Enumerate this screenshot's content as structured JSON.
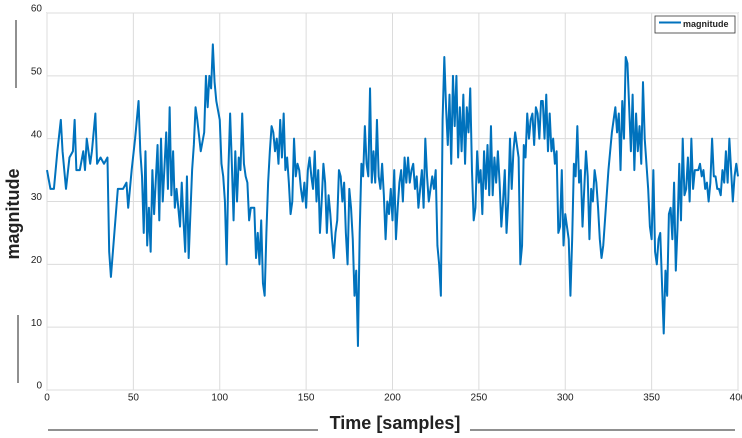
{
  "chart_data": {
    "type": "line",
    "xlabel": "Time [samples]",
    "ylabel": "magnitude",
    "xlim": [
      0,
      400
    ],
    "xticks": [
      0,
      50,
      100,
      150,
      200,
      250,
      300,
      350,
      400
    ],
    "ylim": [
      0,
      60
    ],
    "yticks": [
      0,
      10,
      20,
      30,
      40,
      50,
      60
    ],
    "grid": true,
    "legend": "upper right",
    "x": [
      0,
      2,
      4,
      6,
      8,
      9,
      11,
      13,
      15,
      16,
      17,
      19,
      21,
      22,
      23,
      25,
      26,
      28,
      29,
      31,
      33,
      35,
      36,
      37,
      39,
      41,
      44,
      46,
      47,
      49,
      51,
      53,
      54,
      55,
      56,
      57,
      58,
      59,
      60,
      61,
      62,
      64,
      65,
      66,
      67,
      69,
      70,
      71,
      72,
      73,
      74,
      75,
      77,
      78,
      79,
      80,
      81,
      82,
      84,
      85,
      86,
      87,
      89,
      91,
      92,
      93,
      94,
      95,
      96,
      97,
      98,
      100,
      101,
      102,
      103,
      104,
      105,
      106,
      107,
      108,
      109,
      110,
      111,
      112,
      113,
      114,
      115,
      116,
      117,
      118,
      119,
      120,
      121,
      122,
      123,
      124,
      125,
      126,
      127,
      128,
      129,
      130,
      131,
      132,
      133,
      134,
      135,
      136,
      137,
      138,
      139,
      140,
      141,
      142,
      143,
      144,
      145,
      146,
      147,
      148,
      149,
      150,
      151,
      152,
      153,
      154,
      155,
      156,
      157,
      158,
      159,
      160,
      161,
      162,
      163,
      164,
      165,
      166,
      167,
      168,
      169,
      170,
      171,
      172,
      173,
      174,
      175,
      176,
      177,
      178,
      179,
      180,
      181,
      182,
      183,
      184,
      185,
      186,
      187,
      188,
      189,
      190,
      191,
      192,
      193,
      194,
      195,
      196,
      197,
      198,
      199,
      200,
      201,
      202,
      203,
      204,
      205,
      206,
      207,
      208,
      209,
      210,
      211,
      212,
      213,
      214,
      215,
      216,
      217,
      218,
      219,
      220,
      221,
      222,
      223,
      224,
      225,
      226,
      227,
      228,
      229,
      230,
      231,
      232,
      233,
      234,
      235,
      236,
      237,
      238,
      239,
      240,
      241,
      242,
      243,
      244,
      245,
      246,
      247,
      248,
      249,
      250,
      251,
      252,
      253,
      254,
      255,
      256,
      257,
      258,
      259,
      260,
      261,
      262,
      263,
      264,
      265,
      266,
      267,
      268,
      269,
      270,
      271,
      272,
      273,
      274,
      275,
      276,
      277,
      278,
      279,
      280,
      281,
      282,
      283,
      284,
      285,
      286,
      287,
      288,
      289,
      290,
      291,
      292,
      293,
      294,
      295,
      296,
      297,
      298,
      299,
      300,
      301,
      302,
      303,
      304,
      305,
      306,
      307,
      308,
      309,
      310,
      311,
      312,
      313,
      314,
      315,
      316,
      317,
      318,
      319,
      320,
      321,
      322,
      323,
      324,
      325,
      326,
      327,
      328,
      329,
      330,
      331,
      332,
      333,
      334,
      335,
      336,
      337,
      338,
      339,
      340,
      341,
      342,
      343,
      344,
      345,
      346,
      347,
      348,
      349,
      350,
      351,
      352,
      353,
      354,
      355,
      356,
      357,
      358,
      359,
      360,
      361,
      362,
      363,
      364,
      365,
      366,
      367,
      368,
      369,
      370,
      371,
      372,
      373,
      374,
      375,
      376,
      377,
      378,
      379,
      380,
      381,
      382,
      383,
      384,
      385,
      386,
      387,
      388,
      389,
      390,
      391,
      392,
      393,
      394,
      395,
      396,
      397,
      398,
      399,
      400
    ],
    "series": [
      {
        "name": "magnitude",
        "color": "#0072bd",
        "values": [
          35,
          32,
          32,
          38,
          43,
          38,
          32,
          37,
          38,
          43,
          35,
          35,
          38,
          35,
          40,
          36,
          38,
          44,
          36,
          37,
          36,
          37,
          22,
          18,
          25,
          32,
          32,
          33,
          29,
          35,
          40,
          46,
          38,
          34,
          25,
          38,
          23,
          29,
          22,
          35,
          28,
          39,
          27,
          40,
          30,
          41,
          32,
          45,
          31,
          38,
          29,
          32,
          26,
          33,
          27,
          22,
          34,
          21,
          35,
          39,
          45,
          43,
          38,
          41,
          50,
          45,
          50,
          48,
          55,
          49,
          46,
          43,
          36,
          34,
          30,
          20,
          35,
          44,
          36,
          27,
          38,
          30,
          37,
          35,
          44,
          36,
          34,
          33,
          27,
          29,
          29,
          29,
          21,
          25,
          20,
          27,
          17,
          15,
          25,
          33,
          38,
          42,
          41,
          38,
          40,
          36,
          43,
          37,
          44,
          35,
          37,
          33,
          28,
          30,
          40,
          34,
          36,
          35,
          32,
          30,
          33,
          29,
          35,
          37,
          34,
          32,
          38,
          30,
          35,
          25,
          30,
          36,
          33,
          25,
          31,
          28,
          24,
          21,
          25,
          27,
          35,
          34,
          30,
          33,
          25,
          20,
          32,
          29,
          24,
          15,
          19,
          7,
          25,
          36,
          34,
          42,
          36,
          34,
          48,
          33,
          38,
          33,
          43,
          34,
          32,
          36,
          31,
          24,
          30,
          28,
          32,
          27,
          35,
          24,
          29,
          33,
          35,
          30,
          37,
          33,
          37,
          33,
          35,
          36,
          32,
          34,
          29,
          32,
          35,
          29,
          40,
          34,
          30,
          32,
          34,
          32,
          35,
          23,
          20,
          15,
          43,
          53,
          45,
          39,
          47,
          36,
          50,
          42,
          50,
          37,
          45,
          38,
          47,
          36,
          45,
          41,
          48,
          35,
          27,
          29,
          38,
          33,
          35,
          28,
          38,
          32,
          39,
          31,
          42,
          31,
          37,
          33,
          38,
          33,
          26,
          30,
          35,
          25,
          30,
          40,
          32,
          38,
          41,
          39,
          37,
          20,
          23,
          39,
          37,
          44,
          40,
          43,
          44,
          39,
          45,
          44,
          40,
          46,
          46,
          40,
          47,
          38,
          44,
          38,
          40,
          36,
          38,
          25,
          26,
          35,
          23,
          28,
          26,
          24,
          15,
          24,
          36,
          34,
          42,
          33,
          35,
          26,
          32,
          38,
          34,
          24,
          32,
          30,
          35,
          33,
          29,
          24,
          21,
          23,
          27,
          31,
          35,
          38,
          41,
          43,
          45,
          41,
          44,
          35,
          46,
          40,
          53,
          52,
          45,
          38,
          47,
          35,
          44,
          38,
          42,
          36,
          49,
          40,
          36,
          32,
          26,
          24,
          35,
          22,
          20,
          24,
          25,
          17,
          9,
          19,
          15,
          28,
          29,
          24,
          33,
          19,
          26,
          36,
          27,
          40,
          31,
          32,
          37,
          30,
          40,
          32,
          35,
          35,
          35,
          36,
          34,
          35,
          32,
          33,
          30,
          33,
          40,
          34,
          34,
          32,
          32,
          31,
          35,
          33,
          38,
          33,
          40,
          35,
          30,
          34,
          36,
          34
        ]
      }
    ]
  }
}
